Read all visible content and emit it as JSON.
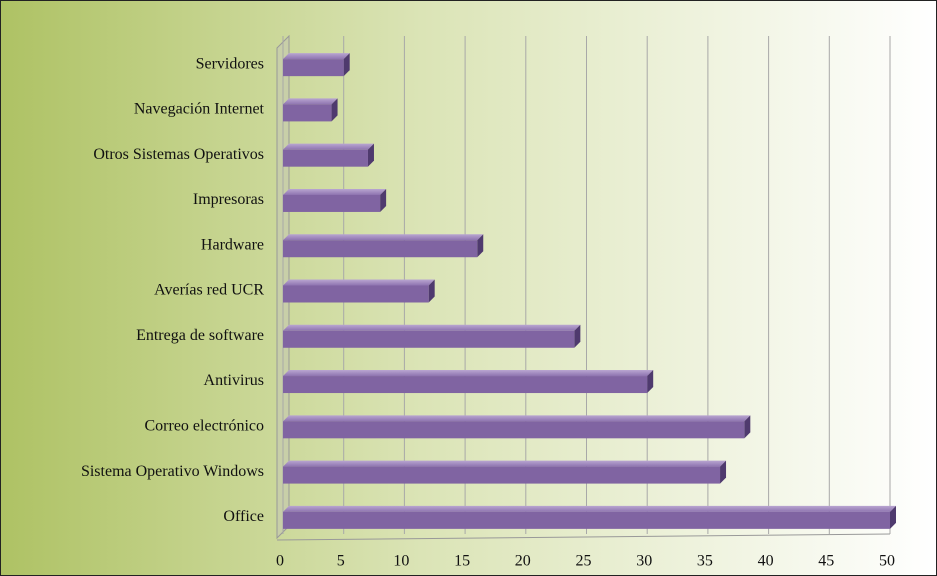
{
  "chart_data": {
    "type": "bar",
    "orientation": "horizontal",
    "categories": [
      "Servidores",
      "Navegación Internet",
      "Otros Sistemas Operativos",
      "Impresoras",
      "Hardware",
      "Averías red UCR",
      "Entrega de software",
      "Antivirus",
      "Correo electrónico",
      "Sistema Operativo Windows",
      "Office"
    ],
    "values": [
      5,
      4,
      7,
      8,
      16,
      12,
      24,
      30,
      38,
      36,
      50
    ],
    "color": "#8064a2",
    "xlim": [
      0,
      50
    ],
    "xticks": [
      0,
      5,
      10,
      15,
      20,
      25,
      30,
      35,
      40,
      45,
      50
    ],
    "grid": true
  }
}
